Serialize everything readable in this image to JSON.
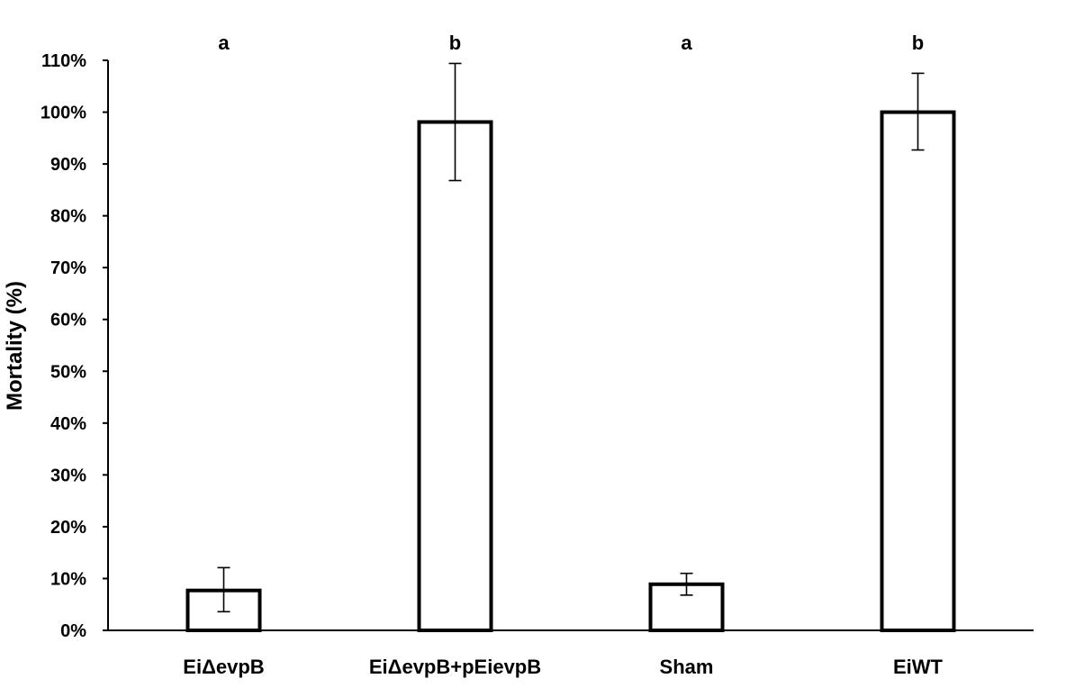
{
  "chart_data": {
    "type": "bar",
    "ylabel": "Mortality (%)",
    "xlabel": "",
    "categories": [
      "EiΔevpB",
      "EiΔevpB+pEievpB",
      "Sham",
      "EiWT"
    ],
    "values": [
      7.7,
      98.1,
      8.9,
      100
    ],
    "error_low": [
      3.6,
      86.8,
      6.8,
      92.7
    ],
    "error_high": [
      12.1,
      109.4,
      11.0,
      107.5
    ],
    "significance": [
      "a",
      "b",
      "a",
      "b"
    ],
    "ylim": [
      0,
      110
    ],
    "yticks": [
      0,
      10,
      20,
      30,
      40,
      50,
      60,
      70,
      80,
      90,
      100,
      110
    ],
    "ytick_labels": [
      "0%",
      "10%",
      "20%",
      "30%",
      "40%",
      "50%",
      "60%",
      "70%",
      "80%",
      "90%",
      "100%",
      "110%"
    ],
    "grid": false,
    "legend": "none",
    "colors": {
      "bar_fill": "#ffffff",
      "bar_stroke": "#000000",
      "axis": "#000000"
    }
  }
}
